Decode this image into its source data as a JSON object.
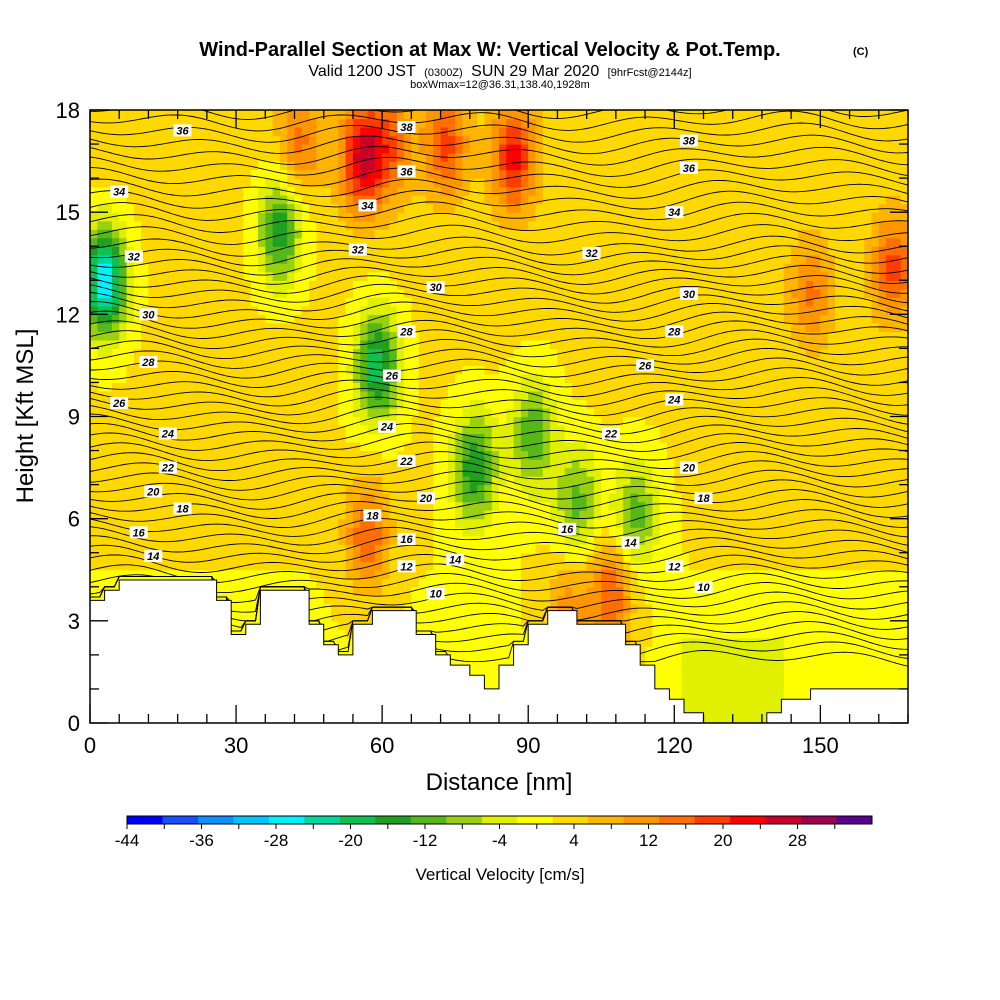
{
  "chart_data": {
    "type": "heatmap",
    "title": "Wind-Parallel Section at Max W: Vertical Velocity & Pot.Temp.",
    "title_mark": "(C)",
    "subtitle_main_a": "Valid 1200 JST",
    "subtitle_small_a": "(0300Z)",
    "subtitle_main_b": "SUN 29 Mar 2020",
    "subtitle_small_b": "[9hrFcst@2144z]",
    "subtitle_line2": "boxWmax=12@36.31,138.40,1928m",
    "xlabel": "Distance [nm]",
    "ylabel": "Height [Kft MSL]",
    "xlim": [
      0,
      168
    ],
    "ylim": [
      0,
      18
    ],
    "xticks": [
      0,
      30,
      60,
      90,
      120,
      150
    ],
    "yticks": [
      0,
      3,
      6,
      9,
      12,
      15,
      18
    ],
    "colorbar": {
      "label": "Vertical Velocity [cm/s]",
      "min": -44,
      "max": 32,
      "step": 4,
      "tick_labels": [
        -44,
        -36,
        -28,
        -20,
        -12,
        -4,
        4,
        12,
        20,
        28
      ],
      "colors": [
        "#0000ff",
        "#1a4fff",
        "#0a90ff",
        "#00c6ff",
        "#00f2ff",
        "#00d8a0",
        "#10c050",
        "#20a020",
        "#55b818",
        "#99d010",
        "#e0f000",
        "#ffff00",
        "#ffd800",
        "#ffb400",
        "#ff9600",
        "#ff6e00",
        "#ff3c00",
        "#ff0000",
        "#c8002a",
        "#9c0050",
        "#5a0090"
      ]
    },
    "wmax_cells": [
      {
        "x": 56,
        "y": 16.6,
        "w": 28
      },
      {
        "x": 73,
        "y": 17.0,
        "w": 20
      },
      {
        "x": 87,
        "y": 16.6,
        "w": 24
      },
      {
        "x": 43,
        "y": 17.0,
        "w": 16
      },
      {
        "x": 62,
        "y": 17.0,
        "w": 16
      },
      {
        "x": 57,
        "y": 5.5,
        "w": 20
      },
      {
        "x": 107,
        "y": 3.8,
        "w": 20
      },
      {
        "x": 165,
        "y": 13.4,
        "w": 20
      },
      {
        "x": 148,
        "y": 12.6,
        "w": 16
      },
      {
        "x": 98,
        "y": 3.3,
        "w": 14
      }
    ],
    "wmin_cells": [
      {
        "x": 3,
        "y": 13.0,
        "w": -28
      },
      {
        "x": 39,
        "y": 14.5,
        "w": -16
      },
      {
        "x": 59,
        "y": 10.5,
        "w": -20
      },
      {
        "x": 79,
        "y": 7.5,
        "w": -16
      },
      {
        "x": 91,
        "y": 8.5,
        "w": -12
      },
      {
        "x": 100,
        "y": 6.5,
        "w": -10
      },
      {
        "x": 112,
        "y": 6.1,
        "w": -10
      }
    ],
    "theta_levels": [
      10,
      12,
      14,
      16,
      18,
      20,
      22,
      24,
      26,
      28,
      30,
      32,
      34,
      36,
      38
    ],
    "theta_labels": [
      {
        "v": "36",
        "x": 19,
        "y": 17.4
      },
      {
        "v": "34",
        "x": 6,
        "y": 15.6
      },
      {
        "v": "32",
        "x": 9,
        "y": 13.7
      },
      {
        "v": "30",
        "x": 12,
        "y": 12.0
      },
      {
        "v": "28",
        "x": 12,
        "y": 10.6
      },
      {
        "v": "26",
        "x": 6,
        "y": 9.4
      },
      {
        "v": "24",
        "x": 16,
        "y": 8.5
      },
      {
        "v": "22",
        "x": 16,
        "y": 7.5
      },
      {
        "v": "20",
        "x": 13,
        "y": 6.8
      },
      {
        "v": "18",
        "x": 19,
        "y": 6.3
      },
      {
        "v": "16",
        "x": 10,
        "y": 5.6
      },
      {
        "v": "14",
        "x": 13,
        "y": 4.9
      },
      {
        "v": "38",
        "x": 65,
        "y": 17.5
      },
      {
        "v": "36",
        "x": 65,
        "y": 16.2
      },
      {
        "v": "34",
        "x": 57,
        "y": 15.2
      },
      {
        "v": "32",
        "x": 55,
        "y": 13.9
      },
      {
        "v": "30",
        "x": 71,
        "y": 12.8
      },
      {
        "v": "28",
        "x": 65,
        "y": 11.5
      },
      {
        "v": "26",
        "x": 62,
        "y": 10.2
      },
      {
        "v": "24",
        "x": 61,
        "y": 8.7
      },
      {
        "v": "22",
        "x": 65,
        "y": 7.7
      },
      {
        "v": "20",
        "x": 69,
        "y": 6.6
      },
      {
        "v": "18",
        "x": 58,
        "y": 6.1
      },
      {
        "v": "16",
        "x": 65,
        "y": 5.4
      },
      {
        "v": "14",
        "x": 75,
        "y": 4.8
      },
      {
        "v": "12",
        "x": 65,
        "y": 4.6
      },
      {
        "v": "10",
        "x": 71,
        "y": 3.8
      },
      {
        "v": "38",
        "x": 123,
        "y": 17.1
      },
      {
        "v": "36",
        "x": 123,
        "y": 16.3
      },
      {
        "v": "34",
        "x": 120,
        "y": 15.0
      },
      {
        "v": "32",
        "x": 103,
        "y": 13.8
      },
      {
        "v": "30",
        "x": 123,
        "y": 12.6
      },
      {
        "v": "28",
        "x": 120,
        "y": 11.5
      },
      {
        "v": "26",
        "x": 114,
        "y": 10.5
      },
      {
        "v": "24",
        "x": 120,
        "y": 9.5
      },
      {
        "v": "22",
        "x": 107,
        "y": 8.5
      },
      {
        "v": "20",
        "x": 123,
        "y": 7.5
      },
      {
        "v": "18",
        "x": 126,
        "y": 6.6
      },
      {
        "v": "16",
        "x": 98,
        "y": 5.7
      },
      {
        "v": "14",
        "x": 111,
        "y": 5.3
      },
      {
        "v": "12",
        "x": 120,
        "y": 4.6
      },
      {
        "v": "10",
        "x": 126,
        "y": 4.0
      }
    ],
    "terrain": [
      [
        0,
        3.6
      ],
      [
        3,
        3.6
      ],
      [
        3,
        3.9
      ],
      [
        6,
        3.9
      ],
      [
        6,
        4.2
      ],
      [
        26,
        4.2
      ],
      [
        26,
        3.6
      ],
      [
        29,
        3.6
      ],
      [
        29,
        2.6
      ],
      [
        32,
        2.6
      ],
      [
        32,
        2.9
      ],
      [
        35,
        2.9
      ],
      [
        35,
        3.9
      ],
      [
        45,
        3.9
      ],
      [
        45,
        2.9
      ],
      [
        48,
        2.9
      ],
      [
        48,
        2.3
      ],
      [
        51,
        2.3
      ],
      [
        51,
        2.0
      ],
      [
        54,
        2.0
      ],
      [
        54,
        2.9
      ],
      [
        58,
        2.9
      ],
      [
        58,
        3.3
      ],
      [
        67,
        3.3
      ],
      [
        67,
        2.6
      ],
      [
        71,
        2.6
      ],
      [
        71,
        2.0
      ],
      [
        74,
        2.0
      ],
      [
        74,
        1.7
      ],
      [
        78,
        1.7
      ],
      [
        78,
        1.4
      ],
      [
        81,
        1.4
      ],
      [
        81,
        1.0
      ],
      [
        84,
        1.0
      ],
      [
        84,
        1.7
      ],
      [
        87,
        1.7
      ],
      [
        87,
        2.3
      ],
      [
        90,
        2.3
      ],
      [
        90,
        2.9
      ],
      [
        94,
        2.9
      ],
      [
        94,
        3.3
      ],
      [
        100,
        3.3
      ],
      [
        100,
        2.9
      ],
      [
        110,
        2.9
      ],
      [
        110,
        2.3
      ],
      [
        113,
        2.3
      ],
      [
        113,
        1.7
      ],
      [
        116,
        1.7
      ],
      [
        116,
        1.0
      ],
      [
        119,
        1.0
      ],
      [
        119,
        0.7
      ],
      [
        122,
        0.7
      ],
      [
        122,
        0.3
      ],
      [
        126,
        0.3
      ],
      [
        126,
        0.0
      ],
      [
        139,
        0.0
      ],
      [
        139,
        0.3
      ],
      [
        142,
        0.3
      ],
      [
        142,
        0.7
      ],
      [
        148,
        0.7
      ],
      [
        148,
        1.0
      ],
      [
        168,
        1.0
      ],
      [
        168,
        0
      ],
      [
        0,
        0
      ]
    ],
    "grid": false
  }
}
